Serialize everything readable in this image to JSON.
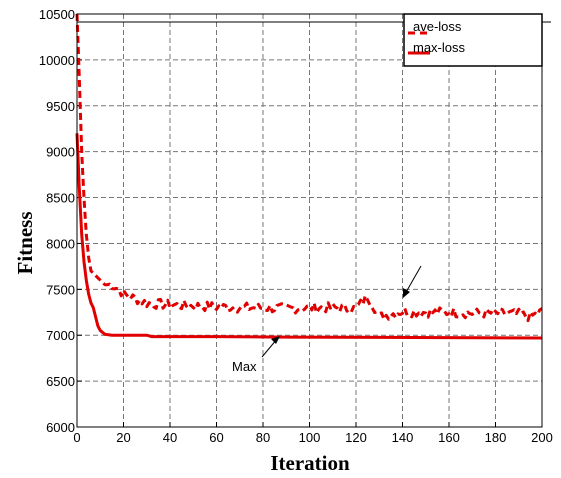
{
  "chart_data": {
    "type": "line",
    "xlabel": "Iteration",
    "ylabel": "Fitness",
    "xlim": [
      0,
      200
    ],
    "ylim": [
      6000,
      10500
    ],
    "x_ticks": [
      "0",
      "20",
      "40",
      "60",
      "80",
      "100",
      "120",
      "140",
      "160",
      "180",
      "200"
    ],
    "y_ticks": [
      "6000",
      "6500",
      "7000",
      "7500",
      "8000",
      "8500",
      "9000",
      "9500",
      "10000",
      "10500"
    ],
    "grid": true,
    "legend_position": "top-right",
    "color": "#e00000",
    "series": [
      {
        "name": "ave-loss",
        "style": "dashed",
        "points": [
          [
            0,
            10500
          ],
          [
            1,
            9800
          ],
          [
            2,
            9000
          ],
          [
            3,
            8500
          ],
          [
            4,
            8100
          ],
          [
            5,
            7850
          ],
          [
            6,
            7700
          ],
          [
            8,
            7650
          ],
          [
            10,
            7600
          ],
          [
            12,
            7550
          ],
          [
            15,
            7550
          ],
          [
            18,
            7500
          ],
          [
            20,
            7450
          ],
          [
            25,
            7400
          ],
          [
            30,
            7350
          ],
          [
            40,
            7330
          ],
          [
            50,
            7320
          ],
          [
            60,
            7310
          ],
          [
            70,
            7300
          ],
          [
            80,
            7300
          ],
          [
            90,
            7290
          ],
          [
            100,
            7300
          ],
          [
            110,
            7300
          ],
          [
            120,
            7290
          ],
          [
            125,
            7420
          ],
          [
            128,
            7300
          ],
          [
            130,
            7200
          ],
          [
            140,
            7260
          ],
          [
            150,
            7250
          ],
          [
            160,
            7250
          ],
          [
            170,
            7240
          ],
          [
            180,
            7240
          ],
          [
            190,
            7230
          ],
          [
            195,
            7200
          ],
          [
            200,
            7260
          ]
        ]
      },
      {
        "name": "max-loss",
        "style": "solid",
        "points": [
          [
            0,
            9200
          ],
          [
            1,
            8600
          ],
          [
            2,
            8100
          ],
          [
            3,
            7800
          ],
          [
            4,
            7600
          ],
          [
            5,
            7450
          ],
          [
            6,
            7350
          ],
          [
            7,
            7300
          ],
          [
            8,
            7200
          ],
          [
            9,
            7100
          ],
          [
            10,
            7050
          ],
          [
            12,
            7010
          ],
          [
            15,
            7000
          ],
          [
            30,
            7000
          ],
          [
            32,
            6985
          ],
          [
            60,
            6985
          ],
          [
            90,
            6980
          ],
          [
            200,
            6970
          ]
        ]
      }
    ],
    "annotations": [
      {
        "text": "Max",
        "x": 85,
        "y": 6960
      }
    ]
  }
}
